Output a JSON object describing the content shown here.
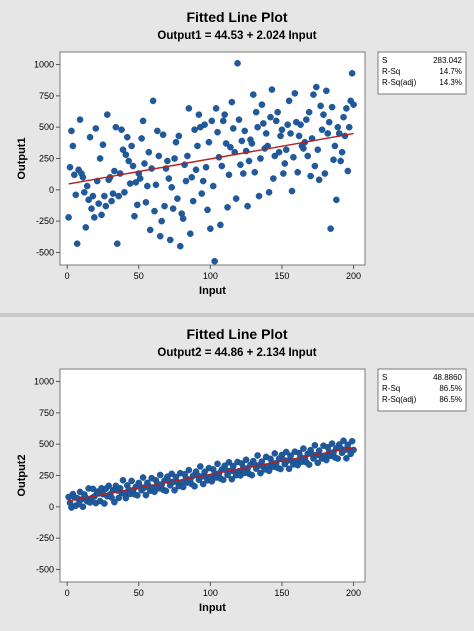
{
  "chart_data": [
    {
      "type": "scatter",
      "title": "Fitted Line Plot",
      "subtitle": "Output1 = 44.53 + 2.024 Input",
      "xlabel": "Input",
      "ylabel": "Output1",
      "xlim": [
        -5,
        208
      ],
      "ylim": [
        -600,
        1100
      ],
      "xticks": [
        0,
        50,
        100,
        150,
        200
      ],
      "yticks": [
        -500,
        -250,
        0,
        250,
        500,
        750,
        1000
      ],
      "fit": {
        "intercept": 44.53,
        "slope": 2.024,
        "x_range": [
          1,
          200
        ]
      },
      "stats": [
        {
          "label": "S",
          "value": "283.042"
        },
        {
          "label": "R-Sq",
          "value": "14.7%"
        },
        {
          "label": "R-Sq(adj)",
          "value": "14.3%"
        }
      ],
      "points": [
        [
          1,
          -220
        ],
        [
          2,
          180
        ],
        [
          3,
          470
        ],
        [
          4,
          350
        ],
        [
          5,
          120
        ],
        [
          6,
          -40
        ],
        [
          7,
          -430
        ],
        [
          8,
          160
        ],
        [
          9,
          560
        ],
        [
          10,
          130
        ],
        [
          11,
          100
        ],
        [
          12,
          -20
        ],
        [
          13,
          -300
        ],
        [
          14,
          30
        ],
        [
          15,
          -80
        ],
        [
          16,
          420
        ],
        [
          17,
          -150
        ],
        [
          18,
          -50
        ],
        [
          19,
          -220
        ],
        [
          20,
          490
        ],
        [
          21,
          70
        ],
        [
          22,
          -110
        ],
        [
          23,
          250
        ],
        [
          24,
          -200
        ],
        [
          25,
          360
        ],
        [
          26,
          -50
        ],
        [
          27,
          -130
        ],
        [
          28,
          600
        ],
        [
          29,
          80
        ],
        [
          30,
          100
        ],
        [
          31,
          -90
        ],
        [
          32,
          -30
        ],
        [
          33,
          150
        ],
        [
          34,
          500
        ],
        [
          35,
          -430
        ],
        [
          36,
          -50
        ],
        [
          37,
          130
        ],
        [
          38,
          480
        ],
        [
          39,
          320
        ],
        [
          40,
          -20
        ],
        [
          41,
          280
        ],
        [
          42,
          420
        ],
        [
          43,
          230
        ],
        [
          44,
          50
        ],
        [
          45,
          350
        ],
        [
          46,
          190
        ],
        [
          47,
          -210
        ],
        [
          48,
          60
        ],
        [
          49,
          -120
        ],
        [
          50,
          130
        ],
        [
          51,
          90
        ],
        [
          52,
          410
        ],
        [
          53,
          550
        ],
        [
          54,
          210
        ],
        [
          55,
          -100
        ],
        [
          56,
          30
        ],
        [
          57,
          300
        ],
        [
          58,
          -320
        ],
        [
          59,
          170
        ],
        [
          60,
          710
        ],
        [
          61,
          -170
        ],
        [
          62,
          40
        ],
        [
          63,
          470
        ],
        [
          64,
          270
        ],
        [
          65,
          -370
        ],
        [
          66,
          -250
        ],
        [
          67,
          440
        ],
        [
          68,
          -130
        ],
        [
          69,
          170
        ],
        [
          70,
          230
        ],
        [
          71,
          90
        ],
        [
          72,
          -400
        ],
        [
          73,
          20
        ],
        [
          74,
          -150
        ],
        [
          75,
          250
        ],
        [
          76,
          380
        ],
        [
          77,
          -70
        ],
        [
          78,
          430
        ],
        [
          79,
          -450
        ],
        [
          80,
          -190
        ],
        [
          81,
          -230
        ],
        [
          82,
          200
        ],
        [
          83,
          70
        ],
        [
          84,
          270
        ],
        [
          85,
          650
        ],
        [
          86,
          -350
        ],
        [
          87,
          100
        ],
        [
          88,
          -90
        ],
        [
          89,
          480
        ],
        [
          90,
          160
        ],
        [
          91,
          350
        ],
        [
          92,
          600
        ],
        [
          93,
          500
        ],
        [
          94,
          -30
        ],
        [
          95,
          70
        ],
        [
          96,
          520
        ],
        [
          97,
          180
        ],
        [
          98,
          -160
        ],
        [
          99,
          380
        ],
        [
          100,
          -310
        ],
        [
          101,
          550
        ],
        [
          102,
          30
        ],
        [
          103,
          -570
        ],
        [
          104,
          650
        ],
        [
          105,
          460
        ],
        [
          106,
          260
        ],
        [
          107,
          -280
        ],
        [
          108,
          190
        ],
        [
          109,
          550
        ],
        [
          110,
          600
        ],
        [
          111,
          370
        ],
        [
          112,
          -140
        ],
        [
          113,
          120
        ],
        [
          114,
          340
        ],
        [
          115,
          700
        ],
        [
          116,
          490
        ],
        [
          117,
          300
        ],
        [
          118,
          -70
        ],
        [
          119,
          1010
        ],
        [
          120,
          560
        ],
        [
          121,
          200
        ],
        [
          122,
          390
        ],
        [
          123,
          130
        ],
        [
          124,
          470
        ],
        [
          125,
          310
        ],
        [
          126,
          -130
        ],
        [
          127,
          230
        ],
        [
          128,
          400
        ],
        [
          129,
          370
        ],
        [
          130,
          760
        ],
        [
          131,
          140
        ],
        [
          132,
          620
        ],
        [
          133,
          500
        ],
        [
          134,
          -50
        ],
        [
          135,
          250
        ],
        [
          136,
          680
        ],
        [
          137,
          530
        ],
        [
          138,
          330
        ],
        [
          139,
          450
        ],
        [
          140,
          350
        ],
        [
          141,
          -20
        ],
        [
          142,
          580
        ],
        [
          143,
          800
        ],
        [
          144,
          90
        ],
        [
          145,
          270
        ],
        [
          146,
          550
        ],
        [
          147,
          620
        ],
        [
          148,
          300
        ],
        [
          149,
          430
        ],
        [
          150,
          480
        ],
        [
          151,
          130
        ],
        [
          152,
          210
        ],
        [
          153,
          320
        ],
        [
          154,
          520
        ],
        [
          155,
          710
        ],
        [
          156,
          450
        ],
        [
          157,
          -10
        ],
        [
          158,
          260
        ],
        [
          159,
          770
        ],
        [
          160,
          540
        ],
        [
          161,
          140
        ],
        [
          162,
          430
        ],
        [
          163,
          520
        ],
        [
          164,
          350
        ],
        [
          165,
          330
        ],
        [
          166,
          380
        ],
        [
          167,
          560
        ],
        [
          168,
          270
        ],
        [
          169,
          620
        ],
        [
          170,
          110
        ],
        [
          171,
          410
        ],
        [
          172,
          760
        ],
        [
          173,
          190
        ],
        [
          174,
          820
        ],
        [
          175,
          320
        ],
        [
          176,
          80
        ],
        [
          177,
          670
        ],
        [
          178,
          480
        ],
        [
          179,
          600
        ],
        [
          180,
          130
        ],
        [
          181,
          790
        ],
        [
          182,
          450
        ],
        [
          183,
          540
        ],
        [
          184,
          -310
        ],
        [
          185,
          660
        ],
        [
          186,
          240
        ],
        [
          187,
          350
        ],
        [
          188,
          -80
        ],
        [
          189,
          500
        ],
        [
          190,
          450
        ],
        [
          191,
          230
        ],
        [
          192,
          300
        ],
        [
          193,
          580
        ],
        [
          194,
          430
        ],
        [
          195,
          650
        ],
        [
          196,
          150
        ],
        [
          197,
          500
        ],
        [
          198,
          710
        ],
        [
          199,
          930
        ],
        [
          200,
          680
        ]
      ]
    },
    {
      "type": "scatter",
      "title": "Fitted Line Plot",
      "subtitle": "Output2 = 44.86 + 2.134 Input",
      "xlabel": "Input",
      "ylabel": "Output2",
      "xlim": [
        -5,
        208
      ],
      "ylim": [
        -600,
        1100
      ],
      "xticks": [
        0,
        50,
        100,
        150,
        200
      ],
      "yticks": [
        -500,
        -250,
        0,
        250,
        500,
        750,
        1000
      ],
      "fit": {
        "intercept": 44.86,
        "slope": 2.134,
        "x_range": [
          1,
          200
        ]
      },
      "stats": [
        {
          "label": "S",
          "value": "48.8860"
        },
        {
          "label": "R-Sq",
          "value": "86.5%"
        },
        {
          "label": "R-Sq(adj)",
          "value": "86.5%"
        }
      ],
      "noise": [
        31,
        -18,
        -57,
        48,
        22,
        -49,
        9,
        -39,
        55,
        -8,
        -68,
        28,
        1,
        -31,
        70,
        -44,
        -13,
        60,
        -2,
        -58,
        32,
        15,
        -48,
        52,
        3,
        -74,
        42,
        -20,
        61,
        -9,
        -37,
        18,
        -78,
        50,
        11,
        -51,
        25,
        -15,
        84,
        -28,
        -63,
        36,
        0,
        -36,
        66,
        -11,
        -45,
        13,
        -58,
        39,
        6,
        -24,
        76,
        -6,
        -69,
        27,
        -1,
        -40,
        58,
        -19,
        -55,
        34,
        4,
        -34,
        71,
        -7,
        -51,
        20,
        -65,
        46,
        9,
        -27,
        63,
        -4,
        -73,
        31,
        -12,
        -46,
        55,
        -21,
        -60,
        40,
        7,
        -30,
        67,
        -10,
        -49,
        16,
        -71,
        44,
        12,
        -25,
        79,
        -3,
        -66,
        29,
        -16,
        -42,
        53,
        -23,
        -57,
        37,
        2,
        -33,
        74,
        -5,
        -47,
        22,
        -62,
        48,
        10,
        -29,
        69,
        -2,
        -70,
        33,
        -14,
        -44,
        59,
        -17,
        -53,
        41,
        5,
        -38,
        64,
        -8,
        -52,
        18,
        -67,
        43,
        13,
        -22,
        81,
        -1,
        -64,
        26,
        -18,
        -41,
        57,
        -20,
        -59,
        35,
        3,
        -32,
        72,
        -9,
        -48,
        23,
        -61,
        49,
        8,
        -28,
        66,
        -5,
        -72,
        30,
        -13,
        -43,
        56,
        -24,
        -56,
        39,
        6,
        -35,
        68,
        -12,
        -46,
        19,
        -69,
        45,
        11,
        -26,
        77,
        -4,
        -67,
        28,
        -15,
        -39,
        61,
        -22,
        -58,
        42,
        1,
        -30,
        65,
        -7,
        -50,
        21,
        -63,
        47,
        14,
        -23,
        71,
        -3,
        -74,
        32,
        -11,
        -45,
        54,
        -18
      ]
    }
  ]
}
